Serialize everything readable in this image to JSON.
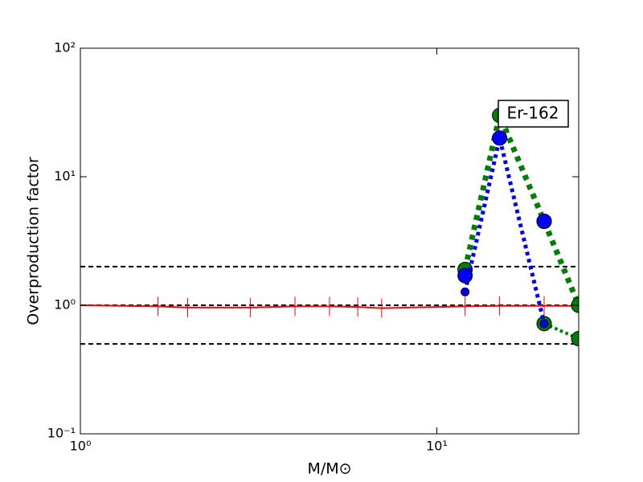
{
  "chart_data": {
    "type": "line",
    "xlabel": "M/M⊙",
    "ylabel": "Overproduction factor",
    "log_x": true,
    "log_y": true,
    "xlim": [
      1,
      25
    ],
    "ylim": [
      0.1,
      100
    ],
    "xticks": [
      {
        "value": 1,
        "label": "10⁰"
      },
      {
        "value": 10,
        "label": "10¹"
      }
    ],
    "yticks": [
      {
        "value": 0.1,
        "label": "10⁻¹"
      },
      {
        "value": 1,
        "label": "10⁰"
      },
      {
        "value": 10,
        "label": "10¹"
      },
      {
        "value": 100,
        "label": "10²"
      }
    ],
    "hlines": [
      0.5,
      1,
      2
    ],
    "annotation": "Er-162",
    "series": [
      {
        "color": "#ff0000",
        "line": "solid",
        "line_width": 2,
        "marker": "tick",
        "x": [
          1,
          1.65,
          2,
          3,
          4,
          5,
          6,
          7,
          12,
          15,
          20,
          25
        ],
        "values": [
          1,
          0.98,
          0.96,
          0.96,
          0.98,
          0.98,
          0.97,
          0.95,
          0.98,
          0.99,
          0.99,
          0.99
        ]
      },
      {
        "color": "#008000",
        "line": "dotted",
        "line_width": 7,
        "marker": "circle",
        "marker_size": 9,
        "x": [
          12,
          15,
          20,
          25
        ],
        "values": [
          1.9,
          30,
          4.5,
          1.0
        ]
      },
      {
        "color": "#008000",
        "line": "dotted",
        "line_width": 4,
        "marker": "circle",
        "marker_size": 9,
        "x": [
          20,
          25
        ],
        "values": [
          0.72,
          0.55
        ]
      },
      {
        "color": "#0000ff",
        "line": "dotted",
        "line_width": 5,
        "marker": "circle",
        "marker_size": 5,
        "x": [
          12,
          15,
          20
        ],
        "values": [
          1.27,
          20,
          0.72
        ]
      },
      {
        "color": "#0000ff",
        "line": "none",
        "marker": "circle",
        "marker_size": 9,
        "x": [
          12,
          15,
          20
        ],
        "values": [
          1.7,
          20,
          4.5
        ]
      }
    ]
  }
}
